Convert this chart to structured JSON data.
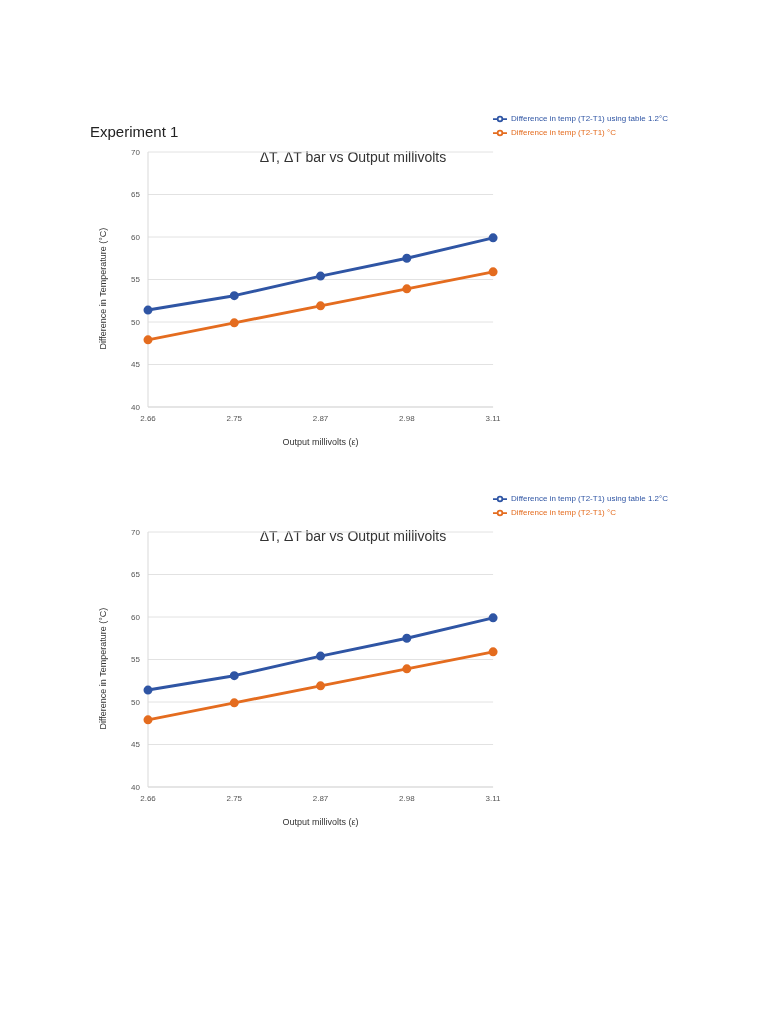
{
  "chart_data": [
    {
      "type": "line",
      "title": "ΔT, ΔT bar vs Output millivolts",
      "annotations": [
        "Experiment 1"
      ],
      "xlabel": "Output millivolts (ε)",
      "ylabel": "Difference in Temperature (°C)",
      "categories": [
        "2.66",
        "2.75",
        "2.87",
        "2.98",
        "3.11"
      ],
      "ylim": [
        40,
        70
      ],
      "yticks": [
        40,
        45,
        50,
        55,
        60,
        65,
        70
      ],
      "grid": "y",
      "legend": "top right",
      "marker": "circle",
      "line_style": "solid",
      "series": [
        {
          "name": "Difference in temp (T2-T1) °C",
          "color": "#e46c1f",
          "values": [
            47.9,
            49.9,
            51.9,
            53.9,
            55.9
          ]
        },
        {
          "name": "Difference in temp (T2-T1) using table 1.2°C",
          "color": "#2f55a4",
          "values": [
            51.4,
            53.1,
            55.4,
            57.5,
            59.9
          ]
        }
      ]
    },
    {
      "type": "line",
      "title": "ΔT, ΔT bar vs Output millivolts",
      "xlabel": "Output millivolts (ε)",
      "ylabel": "Difference in Temperature (°C)",
      "categories": [
        "2.66",
        "2.75",
        "2.87",
        "2.98",
        "3.11"
      ],
      "ylim": [
        40,
        70
      ],
      "yticks": [
        40,
        45,
        50,
        55,
        60,
        65,
        70
      ],
      "grid": "y",
      "legend": "top right",
      "marker": "circle",
      "line_style": "solid",
      "series": [
        {
          "name": "Difference in temp (T2-T1) °C",
          "color": "#e46c1f",
          "values": [
            47.9,
            49.9,
            51.9,
            53.9,
            55.9
          ]
        },
        {
          "name": "Difference in temp (T2-T1) using table 1.2°C",
          "color": "#2f55a4",
          "values": [
            51.4,
            53.1,
            55.4,
            57.5,
            59.9
          ]
        }
      ]
    }
  ]
}
